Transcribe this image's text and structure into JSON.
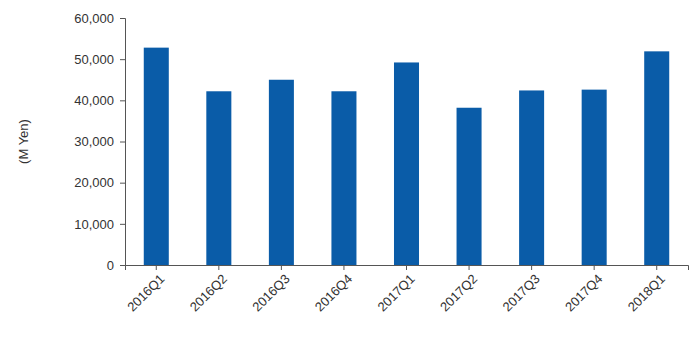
{
  "chart_data": {
    "type": "bar",
    "y_label": "(M Yen)",
    "categories": [
      "2016Q1",
      "2016Q2",
      "2016Q3",
      "2016Q4",
      "2017Q1",
      "2017Q2",
      "2017Q3",
      "2017Q4",
      "2018Q1"
    ],
    "values": [
      52800,
      42200,
      45000,
      42200,
      49200,
      38200,
      42400,
      42600,
      51900
    ],
    "color": "#0a5ca8",
    "ylim": [
      0,
      60000
    ],
    "yticks": [
      0,
      {
        "value": 10000,
        "label": "10,000"
      },
      {
        "value": 20000,
        "label": "20,000"
      },
      {
        "value": 30000,
        "label": "30,000"
      },
      {
        "value": 40000,
        "label": "40,000"
      },
      {
        "value": 50000,
        "label": "50,000"
      },
      {
        "value": 60000,
        "label": "60,000"
      }
    ],
    "grid": false
  }
}
